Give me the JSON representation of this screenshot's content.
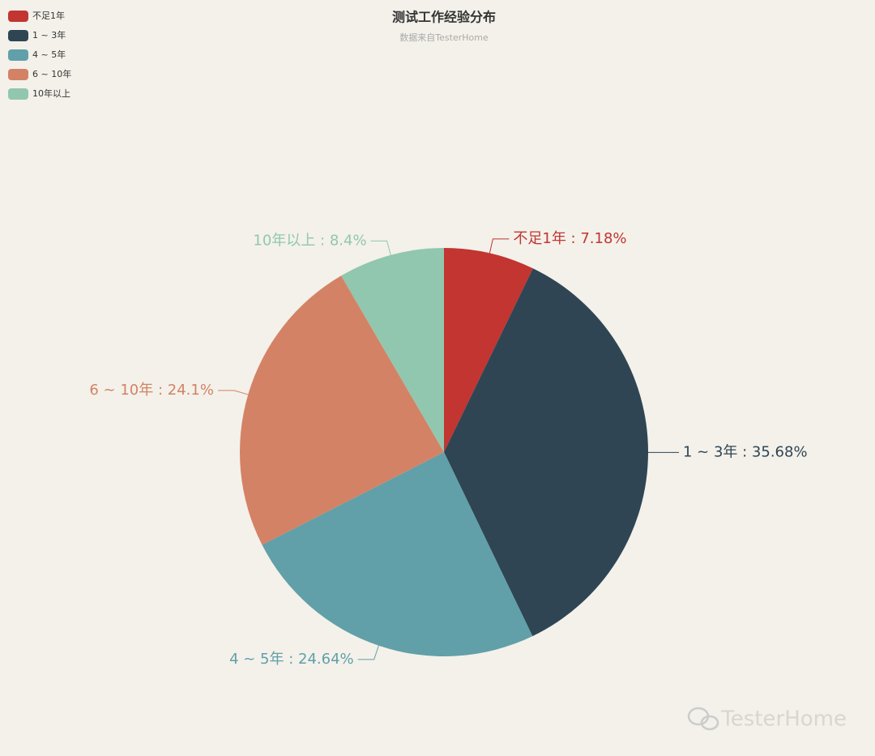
{
  "chart_data": {
    "type": "pie",
    "title": "测试工作经验分布",
    "subtitle": "数据来自TesterHome",
    "categories": [
      "不足1年",
      "1 ~ 3年",
      "4 ~ 5年",
      "6 ~ 10年",
      "10年以上"
    ],
    "values": [
      7.18,
      35.68,
      24.64,
      24.1,
      8.4
    ],
    "value_labels": [
      "不足1年 : 7.18%",
      "1 ~ 3年 : 35.68%",
      "4 ~ 5年 : 24.64%",
      "6 ~ 10年 : 24.1%",
      "10年以上 : 8.4%"
    ],
    "colors": [
      "#c23531",
      "#2f4554",
      "#61a0a8",
      "#d48265",
      "#91c7ae"
    ],
    "legend": "top-left",
    "watermark": "TesterHome"
  }
}
